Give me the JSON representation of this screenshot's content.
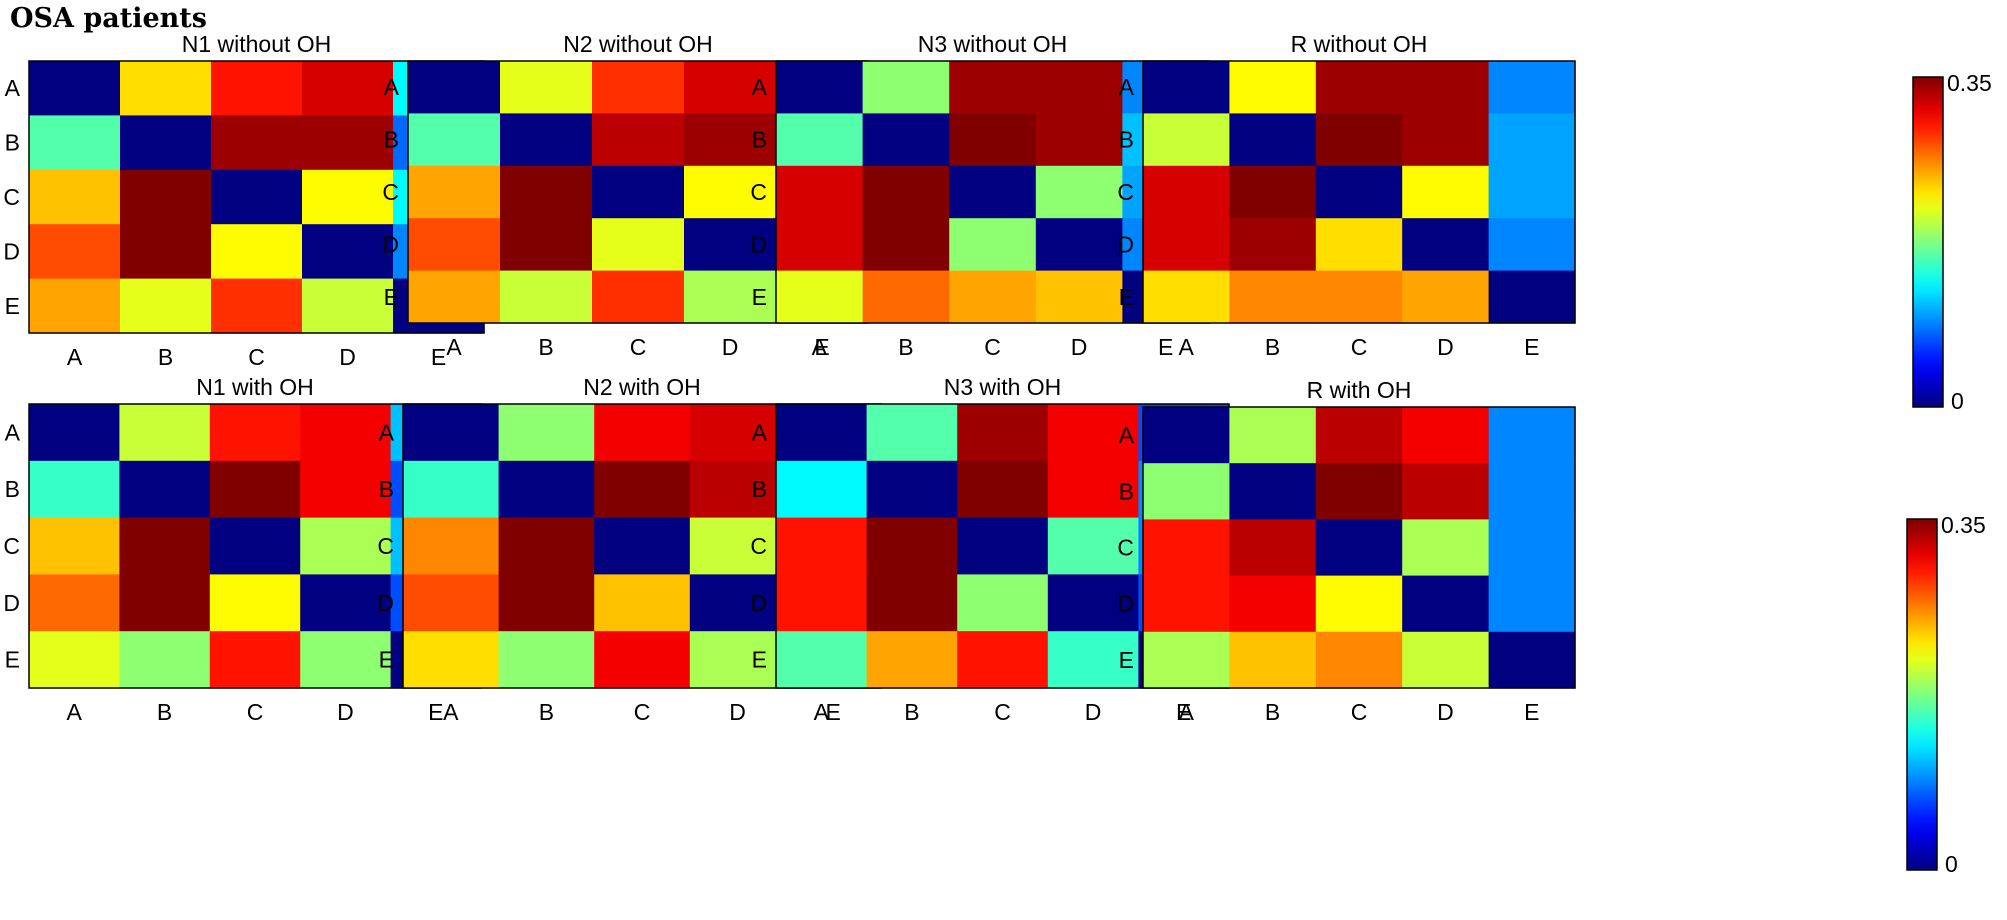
{
  "figure_title": "OSA patients",
  "chart_data": [
    {
      "type": "heatmap",
      "title": "N1 without OH",
      "x_categories": [
        "A",
        "B",
        "C",
        "D",
        "E"
      ],
      "y_categories": [
        "A",
        "B",
        "C",
        "D",
        "E"
      ],
      "colormap": "jet",
      "zlim": [
        0,
        0.35
      ],
      "values": [
        [
          0.0,
          0.23,
          0.3,
          0.32,
          0.13
        ],
        [
          0.16,
          0.0,
          0.34,
          0.34,
          0.08
        ],
        [
          0.24,
          0.35,
          0.0,
          0.22,
          0.13
        ],
        [
          0.28,
          0.35,
          0.22,
          0.0,
          0.09
        ],
        [
          0.25,
          0.21,
          0.29,
          0.2,
          0.0
        ]
      ]
    },
    {
      "type": "heatmap",
      "title": "N2 without OH",
      "x_categories": [
        "A",
        "B",
        "C",
        "D",
        "E"
      ],
      "y_categories": [
        "A",
        "B",
        "C",
        "D",
        "E"
      ],
      "colormap": "jet",
      "zlim": [
        0,
        0.35
      ],
      "values": [
        [
          0.0,
          0.21,
          0.29,
          0.32,
          0.14
        ],
        [
          0.16,
          0.0,
          0.33,
          0.34,
          0.08
        ],
        [
          0.25,
          0.35,
          0.0,
          0.22,
          0.13
        ],
        [
          0.28,
          0.35,
          0.21,
          0.0,
          0.09
        ],
        [
          0.25,
          0.2,
          0.29,
          0.19,
          0.0
        ]
      ]
    },
    {
      "type": "heatmap",
      "title": "N3 without OH",
      "x_categories": [
        "A",
        "B",
        "C",
        "D",
        "E"
      ],
      "y_categories": [
        "A",
        "B",
        "C",
        "D",
        "E"
      ],
      "colormap": "jet",
      "zlim": [
        0,
        0.35
      ],
      "values": [
        [
          0.0,
          0.18,
          0.34,
          0.34,
          0.09
        ],
        [
          0.16,
          0.0,
          0.35,
          0.34,
          0.11
        ],
        [
          0.32,
          0.35,
          0.0,
          0.18,
          0.1
        ],
        [
          0.32,
          0.35,
          0.18,
          0.0,
          0.09
        ],
        [
          0.21,
          0.27,
          0.25,
          0.24,
          0.0
        ]
      ]
    },
    {
      "type": "heatmap",
      "title": "R without OH",
      "x_categories": [
        "A",
        "B",
        "C",
        "D",
        "E"
      ],
      "y_categories": [
        "A",
        "B",
        "C",
        "D",
        "E"
      ],
      "colormap": "jet",
      "zlim": [
        0,
        0.35
      ],
      "values": [
        [
          0.0,
          0.22,
          0.34,
          0.34,
          0.09
        ],
        [
          0.2,
          0.0,
          0.35,
          0.34,
          0.1
        ],
        [
          0.32,
          0.35,
          0.0,
          0.22,
          0.1
        ],
        [
          0.32,
          0.34,
          0.23,
          0.0,
          0.09
        ],
        [
          0.23,
          0.26,
          0.26,
          0.25,
          0.0
        ]
      ]
    },
    {
      "type": "heatmap",
      "title": "N1 with OH",
      "x_categories": [
        "A",
        "B",
        "C",
        "D",
        "E"
      ],
      "y_categories": [
        "A",
        "B",
        "C",
        "D",
        "E"
      ],
      "colormap": "jet",
      "zlim": [
        0,
        0.35
      ],
      "values": [
        [
          0.0,
          0.2,
          0.3,
          0.31,
          0.11
        ],
        [
          0.15,
          0.0,
          0.35,
          0.31,
          0.07
        ],
        [
          0.24,
          0.35,
          0.0,
          0.19,
          0.11
        ],
        [
          0.27,
          0.35,
          0.22,
          0.0,
          0.07
        ],
        [
          0.21,
          0.18,
          0.3,
          0.18,
          0.0
        ]
      ]
    },
    {
      "type": "heatmap",
      "title": "N2 with OH",
      "x_categories": [
        "A",
        "B",
        "C",
        "D",
        "E"
      ],
      "y_categories": [
        "A",
        "B",
        "C",
        "D",
        "E"
      ],
      "colormap": "jet",
      "zlim": [
        0,
        0.35
      ],
      "values": [
        [
          0.0,
          0.18,
          0.31,
          0.32,
          0.13
        ],
        [
          0.15,
          0.0,
          0.35,
          0.33,
          0.08
        ],
        [
          0.26,
          0.35,
          0.0,
          0.2,
          0.13
        ],
        [
          0.28,
          0.35,
          0.24,
          0.0,
          0.09
        ],
        [
          0.23,
          0.18,
          0.31,
          0.19,
          0.0
        ]
      ]
    },
    {
      "type": "heatmap",
      "title": "N3 with OH",
      "x_categories": [
        "A",
        "B",
        "C",
        "D",
        "E"
      ],
      "y_categories": [
        "A",
        "B",
        "C",
        "D",
        "E"
      ],
      "colormap": "jet",
      "zlim": [
        0,
        0.35
      ],
      "values": [
        [
          0.0,
          0.16,
          0.34,
          0.31,
          0.07
        ],
        [
          0.13,
          0.0,
          0.35,
          0.31,
          0.09
        ],
        [
          0.3,
          0.35,
          0.0,
          0.16,
          0.09
        ],
        [
          0.3,
          0.35,
          0.18,
          0.0,
          0.07
        ],
        [
          0.16,
          0.25,
          0.3,
          0.15,
          0.0
        ]
      ]
    },
    {
      "type": "heatmap",
      "title": "R with OH",
      "x_categories": [
        "A",
        "B",
        "C",
        "D",
        "E"
      ],
      "y_categories": [
        "A",
        "B",
        "C",
        "D",
        "E"
      ],
      "colormap": "jet",
      "zlim": [
        0,
        0.35
      ],
      "values": [
        [
          0.0,
          0.19,
          0.33,
          0.31,
          0.09
        ],
        [
          0.18,
          0.0,
          0.35,
          0.33,
          0.09
        ],
        [
          0.3,
          0.33,
          0.0,
          0.19,
          0.09
        ],
        [
          0.3,
          0.31,
          0.22,
          0.0,
          0.09
        ],
        [
          0.19,
          0.24,
          0.26,
          0.2,
          0.0
        ]
      ]
    }
  ],
  "colorbars": [
    {
      "min_label": "0",
      "max_label": "0.35"
    },
    {
      "min_label": "0",
      "max_label": "0.35"
    }
  ]
}
